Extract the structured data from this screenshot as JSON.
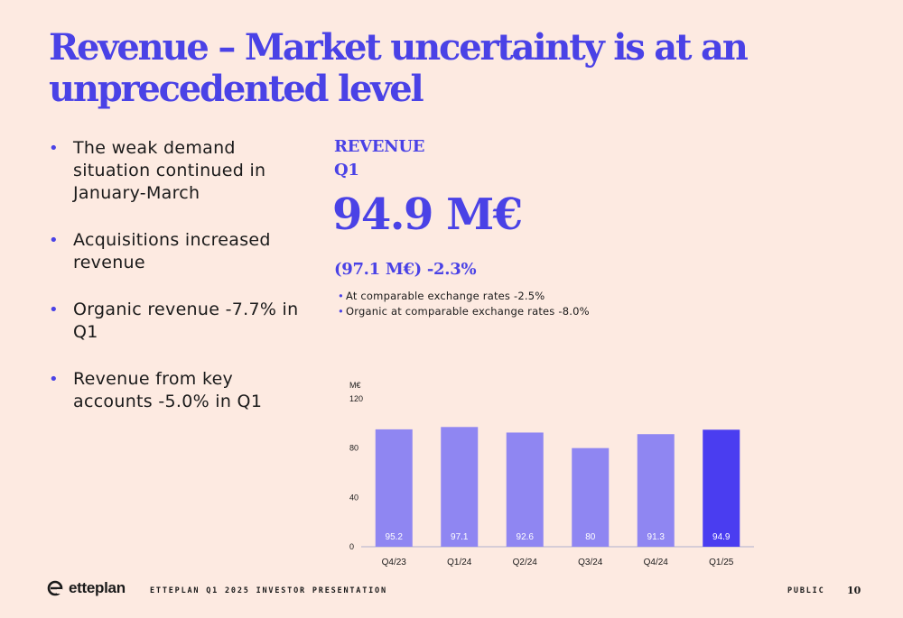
{
  "slide": {
    "title": "Revenue – Market uncertainty is at an unprecedented level",
    "bullets": [
      "The weak demand situation continued in January-March",
      "Acquisitions increased revenue",
      "Organic revenue -7.7% in Q1",
      "Revenue from key accounts -5.0% in Q1"
    ],
    "kpi": {
      "label_line1": "REVENUE",
      "label_line2": "Q1",
      "value": "94.9 M€",
      "comparison": "(97.1 M€) -2.3%",
      "notes": [
        "At comparable exchange rates -2.5%",
        "Organic at comparable exchange rates -8.0%"
      ]
    },
    "footer": {
      "brand": "etteplan",
      "presentation": "ETTEPLAN Q1 2025 INVESTOR PRESENTATION",
      "classification": "PUBLIC",
      "page_number": "10"
    },
    "colors": {
      "background": "#fdeae1",
      "accent": "#4a42e6",
      "bar_light": "#8f86f2",
      "bar_highlight": "#4a3df0"
    }
  },
  "chart_data": {
    "type": "bar",
    "ylabel": "M€",
    "ylim": [
      0,
      120
    ],
    "yticks": [
      0,
      40,
      80,
      120
    ],
    "categories": [
      "Q4/23",
      "Q1/24",
      "Q2/24",
      "Q3/24",
      "Q4/24",
      "Q1/25"
    ],
    "values": [
      95.2,
      97.1,
      92.6,
      80,
      91.3,
      94.9
    ],
    "value_labels": [
      "95.2",
      "97.1",
      "92.6",
      "80",
      "91.3",
      "94.9"
    ],
    "highlight_index": 5,
    "grid": false,
    "legend": "none"
  }
}
